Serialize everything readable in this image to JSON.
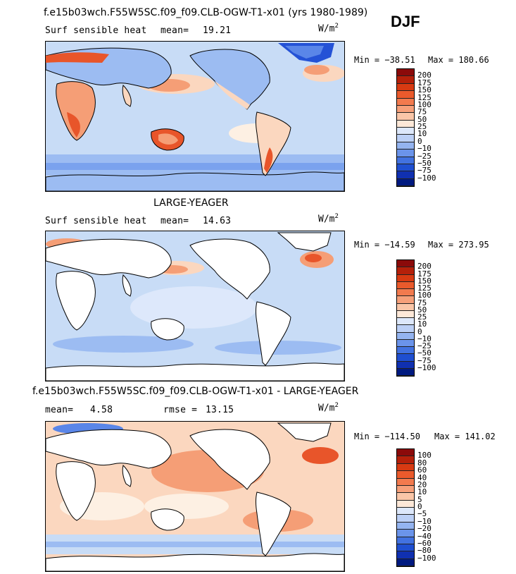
{
  "season": "DJF",
  "colors": {
    "land": "#ffffff",
    "coast": "#000000",
    "light_blue": "#c8dcf6",
    "mid_blue": "#9cbcf2",
    "blue": "#5a86e8",
    "deep_blue": "#2452d6",
    "light_orange": "#fbd7bf",
    "orange": "#f59e76",
    "red_orange": "#e8552a",
    "cream": "#fdf0e3"
  },
  "chart_data": [
    {
      "type": "heatmap",
      "title": "f.e15b03wch.F55W5SC.f09_f09.CLB-OGW-T1-x01 (yrs 1980-1989)",
      "subtitle": "Surf sensible heat",
      "stat_label": "mean=",
      "stat_value": "19.21",
      "units": "W/m",
      "units_sup": "2",
      "min_text": "Min = −38.51",
      "max_text": "Max = 180.66",
      "min": -38.51,
      "max": 180.66,
      "levels": [
        "200",
        "175",
        "150",
        "125",
        "100",
        "75",
        "50",
        "25",
        "10",
        "0",
        "−10",
        "−25",
        "−50",
        "−75",
        "−100"
      ],
      "colors": [
        "#8b0a0a",
        "#b5200a",
        "#d83a12",
        "#ea5a2c",
        "#f27a4e",
        "#f6a07a",
        "#fac6a8",
        "#fde8d8",
        "#dde8fb",
        "#bcd0f6",
        "#94b4f0",
        "#6b94ea",
        "#4272e0",
        "#1f4fd0",
        "#1030b0",
        "#001a80"
      ]
    },
    {
      "type": "heatmap",
      "title": "LARGE-YEAGER",
      "subtitle": "Surf sensible heat",
      "stat_label": "mean=",
      "stat_value": "14.63",
      "units": "W/m",
      "units_sup": "2",
      "min_text": "Min = −14.59",
      "max_text": "Max = 273.95",
      "min": -14.59,
      "max": 273.95,
      "levels": [
        "200",
        "175",
        "150",
        "125",
        "100",
        "75",
        "50",
        "25",
        "10",
        "0",
        "−10",
        "−25",
        "−50",
        "−75",
        "−100"
      ],
      "colors": [
        "#8b0a0a",
        "#b5200a",
        "#d83a12",
        "#ea5a2c",
        "#f27a4e",
        "#f6a07a",
        "#fac6a8",
        "#fde8d8",
        "#dde8fb",
        "#bcd0f6",
        "#94b4f0",
        "#6b94ea",
        "#4272e0",
        "#1f4fd0",
        "#1030b0",
        "#001a80"
      ]
    },
    {
      "type": "heatmap",
      "title": "f.e15b03wch.F55W5SC.f09_f09.CLB-OGW-T1-x01 - LARGE-YEAGER",
      "subtitle_label": "mean=",
      "subtitle_value": "4.58",
      "stat_label": "rmse =",
      "stat_value": "13.15",
      "units": "W/m",
      "units_sup": "2",
      "min_text": "Min = −114.50",
      "max_text": "Max = 141.02",
      "min": -114.5,
      "max": 141.02,
      "levels": [
        "100",
        "80",
        "60",
        "40",
        "20",
        "10",
        "5",
        "0",
        "−5",
        "−10",
        "−20",
        "−40",
        "−60",
        "−80",
        "−100"
      ],
      "colors": [
        "#8b0a0a",
        "#b5200a",
        "#d83a12",
        "#ea5a2c",
        "#f27a4e",
        "#f6a07a",
        "#fac6a8",
        "#fde8d8",
        "#dde8fb",
        "#bcd0f6",
        "#94b4f0",
        "#6b94ea",
        "#4272e0",
        "#1f4fd0",
        "#1030b0",
        "#001a80"
      ]
    }
  ]
}
